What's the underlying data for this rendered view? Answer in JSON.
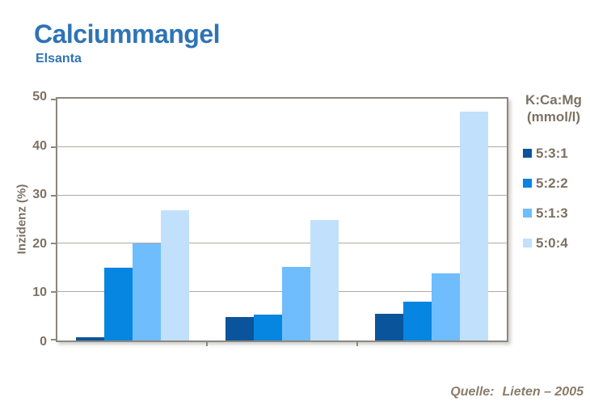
{
  "slide": {
    "title": "Calciummangel",
    "subtitle": "Elsanta",
    "source_label": "Quelle:",
    "source_value": "Lieten – 2005"
  },
  "chart_data": {
    "type": "bar",
    "title": "Calciummangel",
    "subtitle": "Elsanta",
    "xlabel": "",
    "ylabel": "Inzidenz (%)",
    "ylim": [
      0,
      50
    ],
    "yticks": [
      0,
      10,
      20,
      30,
      40,
      50
    ],
    "grid": true,
    "categories": [
      "",
      "",
      ""
    ],
    "legend_position": "right",
    "legend_title": "K:Ca:Mg",
    "legend_unit": "(mmol/l)",
    "series": [
      {
        "name": "5:3:1",
        "color": "#0a549b",
        "values": [
          0.7,
          4.8,
          5.5
        ]
      },
      {
        "name": "5:2:2",
        "color": "#0685e1",
        "values": [
          15,
          5.4,
          8.1
        ]
      },
      {
        "name": "5:1:3",
        "color": "#6fbdfc",
        "values": [
          20,
          15.2,
          13.8
        ]
      },
      {
        "name": "5:0:4",
        "color": "#c1e0fc",
        "values": [
          27,
          25,
          47.3
        ]
      }
    ]
  },
  "colors": {
    "title_blue": "#2e74b5",
    "axis_text": "#7d7164",
    "source_text": "#8a7c6b",
    "gridline": "#b3aa9e",
    "frame": "#8c8880"
  }
}
